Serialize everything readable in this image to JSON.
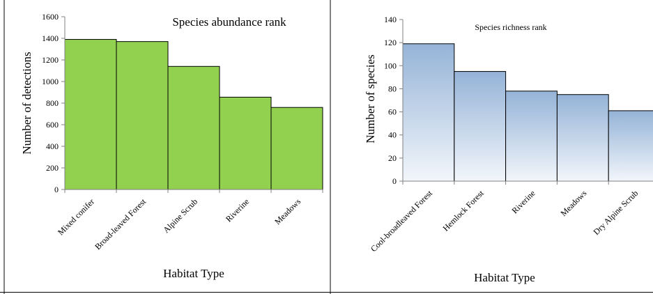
{
  "chart_data": [
    {
      "type": "bar",
      "title": "Species abundance rank",
      "xlabel": "Habitat Type",
      "ylabel": "Number of detections",
      "categories": [
        "Mixed conifer",
        "Broad-leaved Forest",
        "Alpine Scrub",
        "Riverine",
        "Meadows"
      ],
      "values": [
        1390,
        1370,
        1140,
        855,
        760
      ],
      "ylim": [
        0,
        1600
      ],
      "yticks": [
        0,
        200,
        400,
        600,
        800,
        1000,
        1200,
        1400,
        1600
      ],
      "grid": false,
      "bar_color": "#92d050",
      "bar_fill": "solid"
    },
    {
      "type": "bar",
      "title": "Species richness rank",
      "xlabel": "Habitat Type",
      "ylabel": "Number of species",
      "categories": [
        "Cool-broadleaved Forest",
        "Hemlock Forest",
        "Riverine",
        "Meadows",
        "Dry Alpine Scrub"
      ],
      "values": [
        119,
        95,
        78,
        75,
        61
      ],
      "ylim": [
        0,
        140
      ],
      "yticks": [
        0,
        20,
        40,
        60,
        80,
        100,
        120,
        140
      ],
      "grid": false,
      "bar_color_top": "#95b3d7",
      "bar_color_bottom": "#f2f6fb",
      "bar_fill": "vertical-gradient"
    }
  ]
}
